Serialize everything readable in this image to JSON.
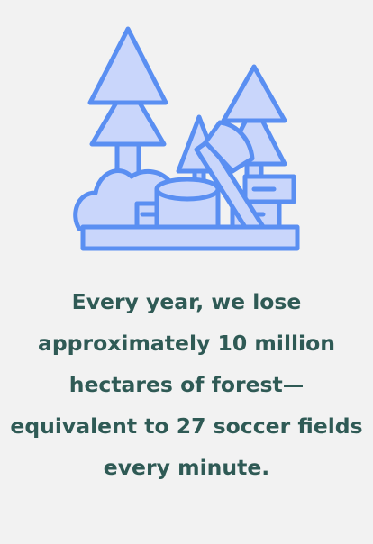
{
  "fact": {
    "text": "Every year, we lose approximately 10 million hectares of forest—equivalent to 27 soccer fields every minute."
  },
  "illustration": {
    "icon": "deforestation-icon",
    "stroke_color": "#5a8ff2",
    "fill_color": "#c9d6fb"
  }
}
